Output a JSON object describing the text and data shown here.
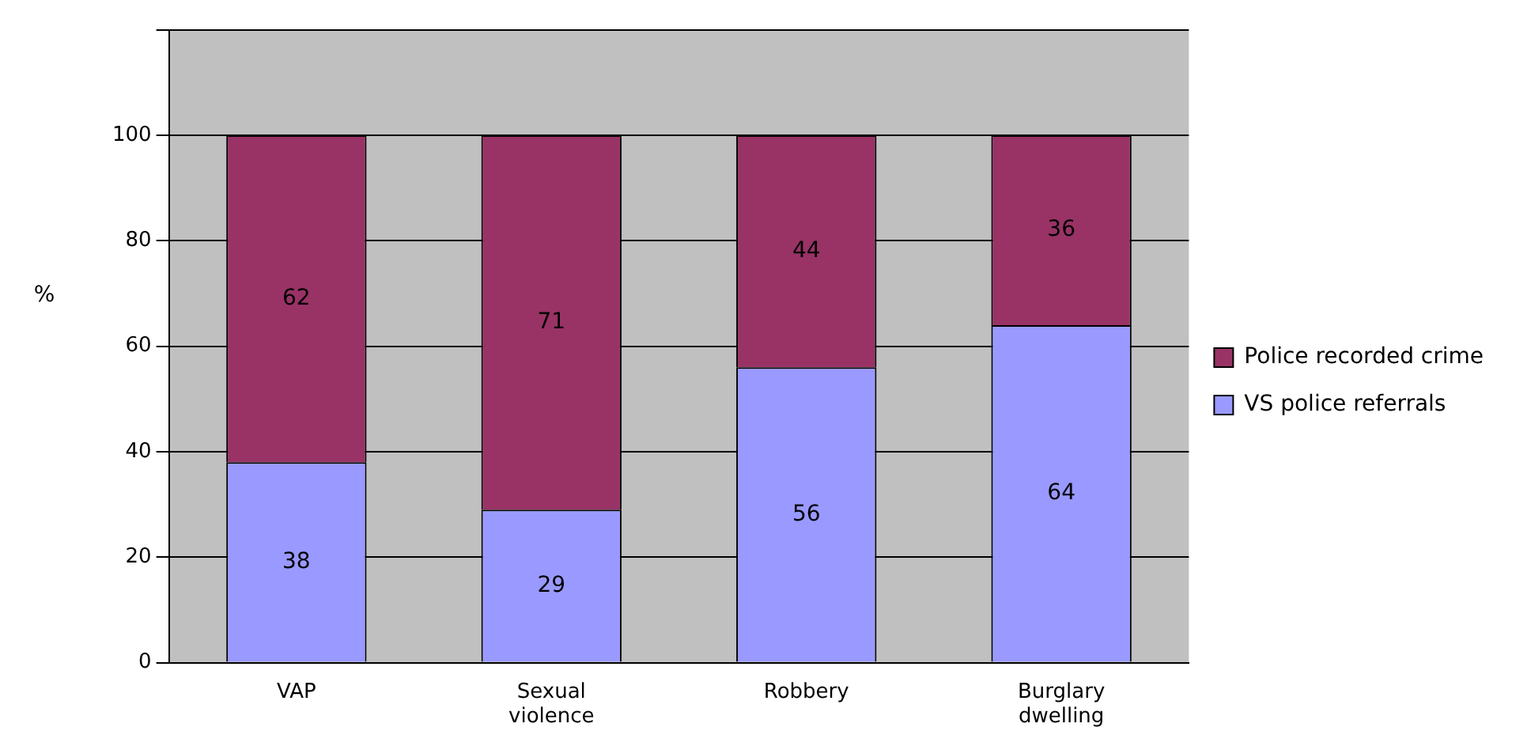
{
  "chart_data": {
    "type": "bar",
    "stacked": true,
    "ylabel": "%",
    "categories": [
      "VAP",
      "Sexual violence",
      "Robbery",
      "Burglary dwelling"
    ],
    "series": [
      {
        "name": "VS police referrals",
        "color": "#9999ff",
        "values": [
          38,
          29,
          56,
          64
        ]
      },
      {
        "name": "Police recorded crime",
        "color": "#993366",
        "values": [
          62,
          71,
          44,
          36
        ]
      }
    ],
    "ylim": [
      0,
      120
    ],
    "yticks": [
      0,
      20,
      40,
      60,
      80,
      100,
      {
        "value": 120,
        "label": null
      }
    ],
    "grid": "y",
    "legend": "right",
    "data_labels": true
  }
}
